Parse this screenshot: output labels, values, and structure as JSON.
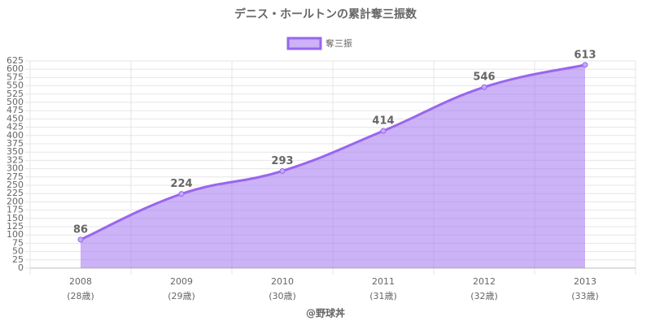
{
  "chart_data": {
    "type": "area",
    "title": "デニス・ホールトンの累計奪三振数",
    "categories": [
      "2008",
      "2009",
      "2010",
      "2011",
      "2012",
      "2013"
    ],
    "ages": [
      "(28歳)",
      "(29歳)",
      "(30歳)",
      "(31歳)",
      "(32歳)",
      "(33歳)"
    ],
    "series": [
      {
        "name": "奪三振",
        "color": "#9966ee",
        "values": [
          86,
          224,
          293,
          414,
          546,
          613
        ]
      }
    ],
    "ylim": [
      0,
      625
    ],
    "yticks": [
      0,
      25,
      50,
      75,
      100,
      125,
      150,
      175,
      200,
      225,
      250,
      275,
      300,
      325,
      350,
      375,
      400,
      425,
      450,
      475,
      500,
      525,
      550,
      575,
      600,
      625
    ],
    "grid": true,
    "source": "@野球丼"
  }
}
